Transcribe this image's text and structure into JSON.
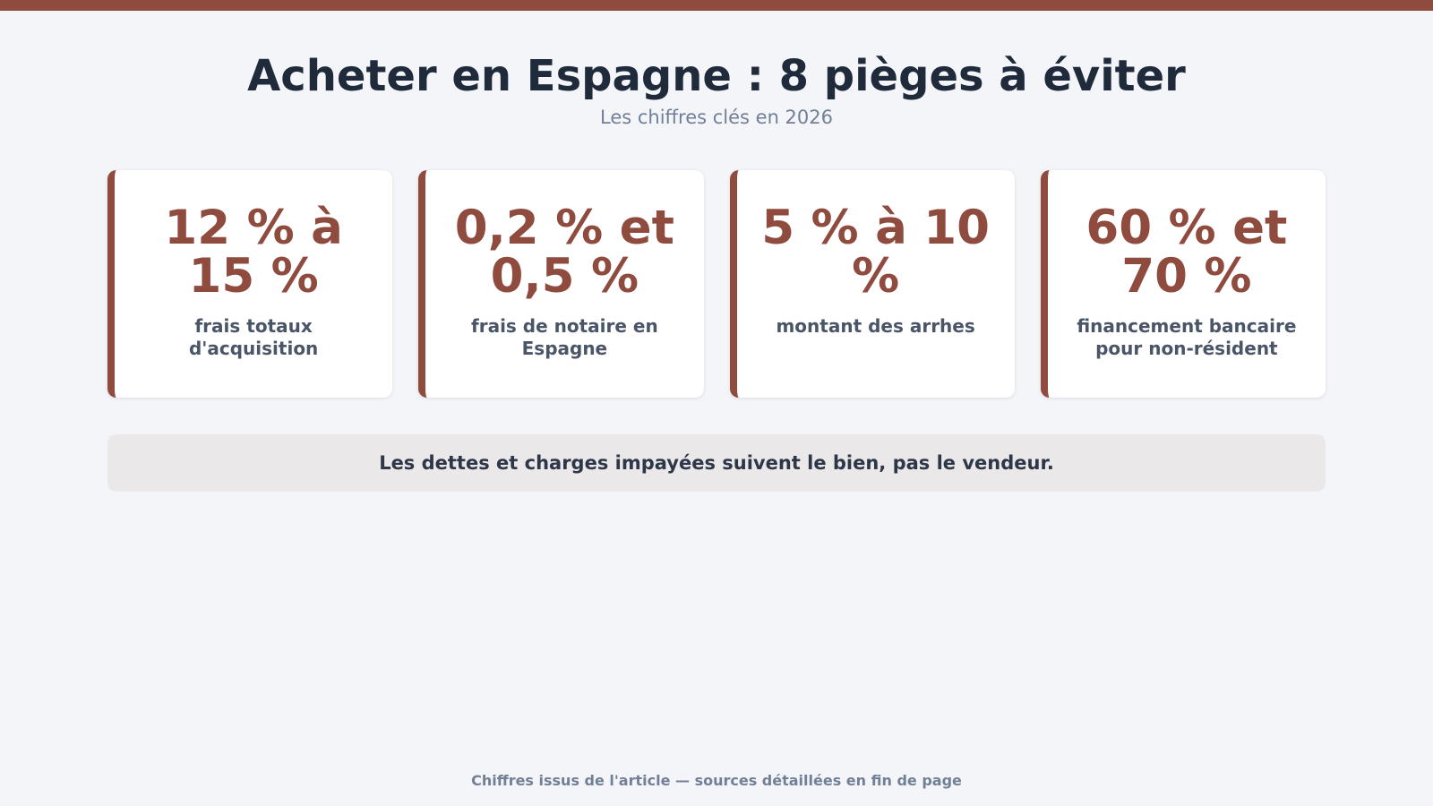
{
  "header": {
    "title": "Acheter en Espagne : 8 pièges à éviter",
    "subtitle": "Les chiffres clés en 2026"
  },
  "cards": [
    {
      "value": "12 % à 15 %",
      "label": "frais totaux d'acquisition"
    },
    {
      "value": "0,2 % et 0,5 %",
      "label": "frais de notaire en Espagne"
    },
    {
      "value": "5 % à 10 %",
      "label": "montant des arrhes"
    },
    {
      "value": "60 % et 70 %",
      "label": "financement bancaire pour non-résident"
    }
  ],
  "note": "Les dettes et charges impayées suivent le bien, pas le vendeur.",
  "footer": "Chiffres issus de l'article — sources détaillées en fin de page",
  "colors": {
    "accent": "#8e4b3e",
    "title": "#1f2a3b",
    "muted": "#718096",
    "background": "#f4f5f8"
  }
}
